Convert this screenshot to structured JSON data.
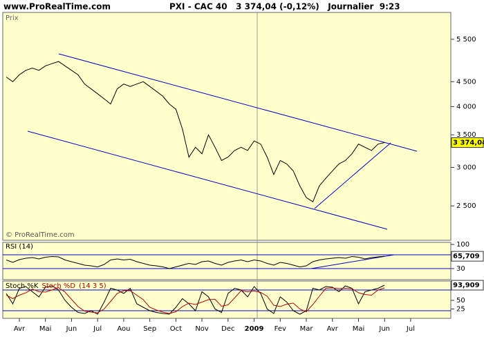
{
  "header": {
    "site": "www.ProRealTime.com",
    "title": "PXI - CAC 40   3 374,04 (-0,12%)   Journalier  9:23"
  },
  "chart_data": [
    {
      "type": "line",
      "label": "Prix",
      "credit": "© ProRealTime.com",
      "color": "#000000",
      "log_scale": true,
      "categories": [
        null,
        null,
        "Avr",
        null,
        null,
        null,
        "Mai",
        null,
        null,
        null,
        "Jun",
        null,
        null,
        null,
        "Jul",
        null,
        null,
        null,
        "Aou",
        null,
        null,
        null,
        "Sep",
        null,
        null,
        null,
        "Oct",
        null,
        null,
        null,
        "Nov",
        null,
        null,
        null,
        "Dec",
        null,
        null,
        null,
        "2009",
        null,
        null,
        null,
        "Fev",
        null,
        null,
        null,
        "Mar",
        null,
        null,
        null,
        "Avr",
        null,
        null,
        null,
        "Mai",
        null,
        null,
        null,
        "Jun",
        null,
        null,
        null,
        "Jul"
      ],
      "values": [
        4600,
        4500,
        4650,
        4750,
        4800,
        4750,
        4850,
        4900,
        4950,
        4850,
        4750,
        4650,
        4450,
        4350,
        4250,
        4150,
        4050,
        4350,
        4450,
        4400,
        4450,
        4500,
        4400,
        4300,
        4200,
        4050,
        3950,
        3600,
        3150,
        3300,
        3200,
        3500,
        3300,
        3100,
        3150,
        3250,
        3300,
        3250,
        3400,
        3350,
        3150,
        2900,
        3100,
        3050,
        2950,
        2750,
        2600,
        2550,
        2750,
        2850,
        2950,
        3050,
        3100,
        3200,
        3350,
        3300,
        3250,
        3350,
        3374.04,
        null,
        null,
        null,
        null
      ],
      "ylim": [
        2125,
        6245
      ],
      "yticks": [
        {
          "value": 2500,
          "label": "2 500"
        },
        {
          "value": 3000,
          "label": "3 000"
        },
        {
          "value": 3500,
          "label": "3 500"
        },
        {
          "value": 4000,
          "label": "4 000"
        },
        {
          "value": 4500,
          "label": "4 500"
        },
        {
          "value": 5500,
          "label": "5 500"
        }
      ],
      "current_value": {
        "value": 3374.04,
        "label": "3 374,04"
      }
    },
    {
      "type": "line",
      "title": "RSI (14)",
      "color": "#000000",
      "values": [
        55,
        48,
        56,
        60,
        62,
        58,
        63,
        65,
        64,
        55,
        50,
        45,
        40,
        38,
        35,
        42,
        55,
        58,
        55,
        57,
        50,
        45,
        40,
        38,
        35,
        30,
        35,
        40,
        45,
        42,
        50,
        52,
        45,
        40,
        48,
        52,
        55,
        50,
        55,
        52,
        45,
        40,
        48,
        45,
        40,
        35,
        38,
        50,
        55,
        58,
        60,
        62,
        60,
        65,
        63,
        58,
        62,
        64,
        65.709,
        null,
        null,
        null,
        null
      ],
      "ylim": [
        0,
        100
      ],
      "yticks": [
        30,
        100
      ],
      "levels": [
        70,
        30
      ],
      "current_value": {
        "value": 65.709,
        "label": "65,709"
      }
    },
    {
      "type": "line",
      "title": "(14 3 5)",
      "series": [
        {
          "name": "Stoch %K",
          "color": "#000000",
          "values": [
            70,
            40,
            85,
            90,
            75,
            60,
            88,
            92,
            80,
            50,
            30,
            15,
            12,
            20,
            10,
            45,
            85,
            80,
            70,
            85,
            40,
            30,
            20,
            15,
            12,
            10,
            30,
            55,
            40,
            20,
            75,
            60,
            25,
            15,
            70,
            85,
            80,
            60,
            90,
            70,
            25,
            12,
            60,
            45,
            20,
            10,
            20,
            85,
            80,
            90,
            88,
            75,
            92,
            85,
            40,
            75,
            80,
            85,
            93.909,
            null,
            null,
            null,
            null
          ]
        },
        {
          "name": "Stoch %D",
          "color": "#c00000",
          "values": [
            65,
            55,
            65,
            72,
            83,
            75,
            74,
            80,
            87,
            74,
            53,
            32,
            19,
            16,
            14,
            25,
            47,
            70,
            78,
            78,
            65,
            52,
            30,
            22,
            16,
            12,
            17,
            32,
            42,
            38,
            45,
            52,
            53,
            33,
            37,
            57,
            78,
            75,
            77,
            73,
            62,
            36,
            32,
            39,
            42,
            25,
            17,
            38,
            62,
            85,
            86,
            84,
            85,
            84,
            72,
            67,
            65,
            80,
            86,
            null,
            null,
            null,
            null
          ]
        }
      ],
      "ylim": [
        0,
        100
      ],
      "yticks": [
        25,
        50
      ],
      "levels": [
        80,
        20
      ],
      "current_value": {
        "value": 93.909,
        "label": "93,909"
      }
    }
  ]
}
